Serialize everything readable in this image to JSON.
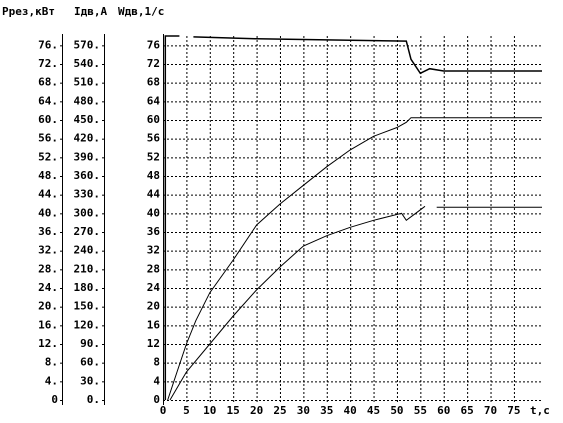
{
  "chart_data": {
    "type": "line",
    "axes": [
      {
        "label": "Pрез,кВт",
        "lim": [
          0,
          78
        ],
        "ticks": [
          {
            "value": 0,
            "label": "0"
          },
          {
            "value": 4,
            "label": "4."
          },
          {
            "value": 8,
            "label": "8."
          },
          {
            "value": 12,
            "label": "12."
          },
          {
            "value": 16,
            "label": "16."
          },
          {
            "value": 20,
            "label": "20."
          },
          {
            "value": 24,
            "label": "24."
          },
          {
            "value": 28,
            "label": "28."
          },
          {
            "value": 32,
            "label": "32."
          },
          {
            "value": 36,
            "label": "36."
          },
          {
            "value": 40,
            "label": "40."
          },
          {
            "value": 44,
            "label": "44."
          },
          {
            "value": 48,
            "label": "48."
          },
          {
            "value": 52,
            "label": "52."
          },
          {
            "value": 56,
            "label": "56."
          },
          {
            "value": 60,
            "label": "60."
          },
          {
            "value": 64,
            "label": "64."
          },
          {
            "value": 68,
            "label": "68."
          },
          {
            "value": 72,
            "label": "72."
          },
          {
            "value": 76,
            "label": "76."
          }
        ]
      },
      {
        "label": "Iдв,А",
        "lim": [
          0,
          585
        ],
        "ticks": [
          {
            "value": 0,
            "label": "0."
          },
          {
            "value": 30,
            "label": "30."
          },
          {
            "value": 60,
            "label": "60."
          },
          {
            "value": 90,
            "label": "90."
          },
          {
            "value": 120,
            "label": "120."
          },
          {
            "value": 150,
            "label": "150."
          },
          {
            "value": 180,
            "label": "180."
          },
          {
            "value": 210,
            "label": "210."
          },
          {
            "value": 240,
            "label": "240."
          },
          {
            "value": 270,
            "label": "270."
          },
          {
            "value": 300,
            "label": "300."
          },
          {
            "value": 330,
            "label": "330."
          },
          {
            "value": 360,
            "label": "360."
          },
          {
            "value": 390,
            "label": "390."
          },
          {
            "value": 420,
            "label": "420."
          },
          {
            "value": 450,
            "label": "450."
          },
          {
            "value": 480,
            "label": "480."
          },
          {
            "value": 510,
            "label": "510."
          },
          {
            "value": 540,
            "label": "540."
          },
          {
            "value": 570,
            "label": "570."
          }
        ]
      },
      {
        "label": "Wдв,1/с",
        "lim": [
          0,
          78
        ],
        "ticks": [
          0,
          4,
          8,
          12,
          16,
          20,
          24,
          28,
          32,
          36,
          40,
          44,
          48,
          52,
          56,
          60,
          64,
          68,
          72,
          76
        ]
      }
    ],
    "xlabel": "t,c",
    "xlim": [
      0,
      81
    ],
    "xticks": [
      0,
      5,
      10,
      15,
      20,
      25,
      30,
      35,
      40,
      45,
      50,
      55,
      60,
      65,
      70,
      75
    ],
    "grid": true,
    "series": [
      {
        "color": "#000000",
        "x": [
          0.5,
          0.5,
          3.5,
          null,
          6.5,
          20,
          40,
          52,
          53,
          55,
          57,
          60,
          81
        ],
        "values": [
          0,
          78,
          78,
          null,
          77.8,
          77.4,
          77.1,
          76.9,
          73,
          70,
          71,
          70.5,
          70.5
        ]
      },
      {
        "color": "#000000",
        "x": [
          1,
          3,
          5,
          7,
          10,
          15,
          20,
          25,
          30,
          35,
          40,
          45,
          50,
          52,
          53,
          81
        ],
        "values": [
          0,
          6,
          12,
          17,
          23,
          30,
          37.5,
          42,
          46,
          50,
          53.6,
          56.5,
          58.4,
          59.5,
          60.5,
          60.5
        ]
      },
      {
        "color": "#000000",
        "x": [
          1.5,
          5,
          10,
          15,
          20,
          25,
          30,
          35,
          40,
          45,
          51,
          52,
          54,
          56,
          null,
          58.5,
          81
        ],
        "values": [
          0,
          6,
          12,
          18,
          23.6,
          28.5,
          33,
          35.2,
          37,
          38.5,
          40,
          38.5,
          40,
          41.5,
          null,
          41.3,
          41.3
        ]
      }
    ]
  }
}
